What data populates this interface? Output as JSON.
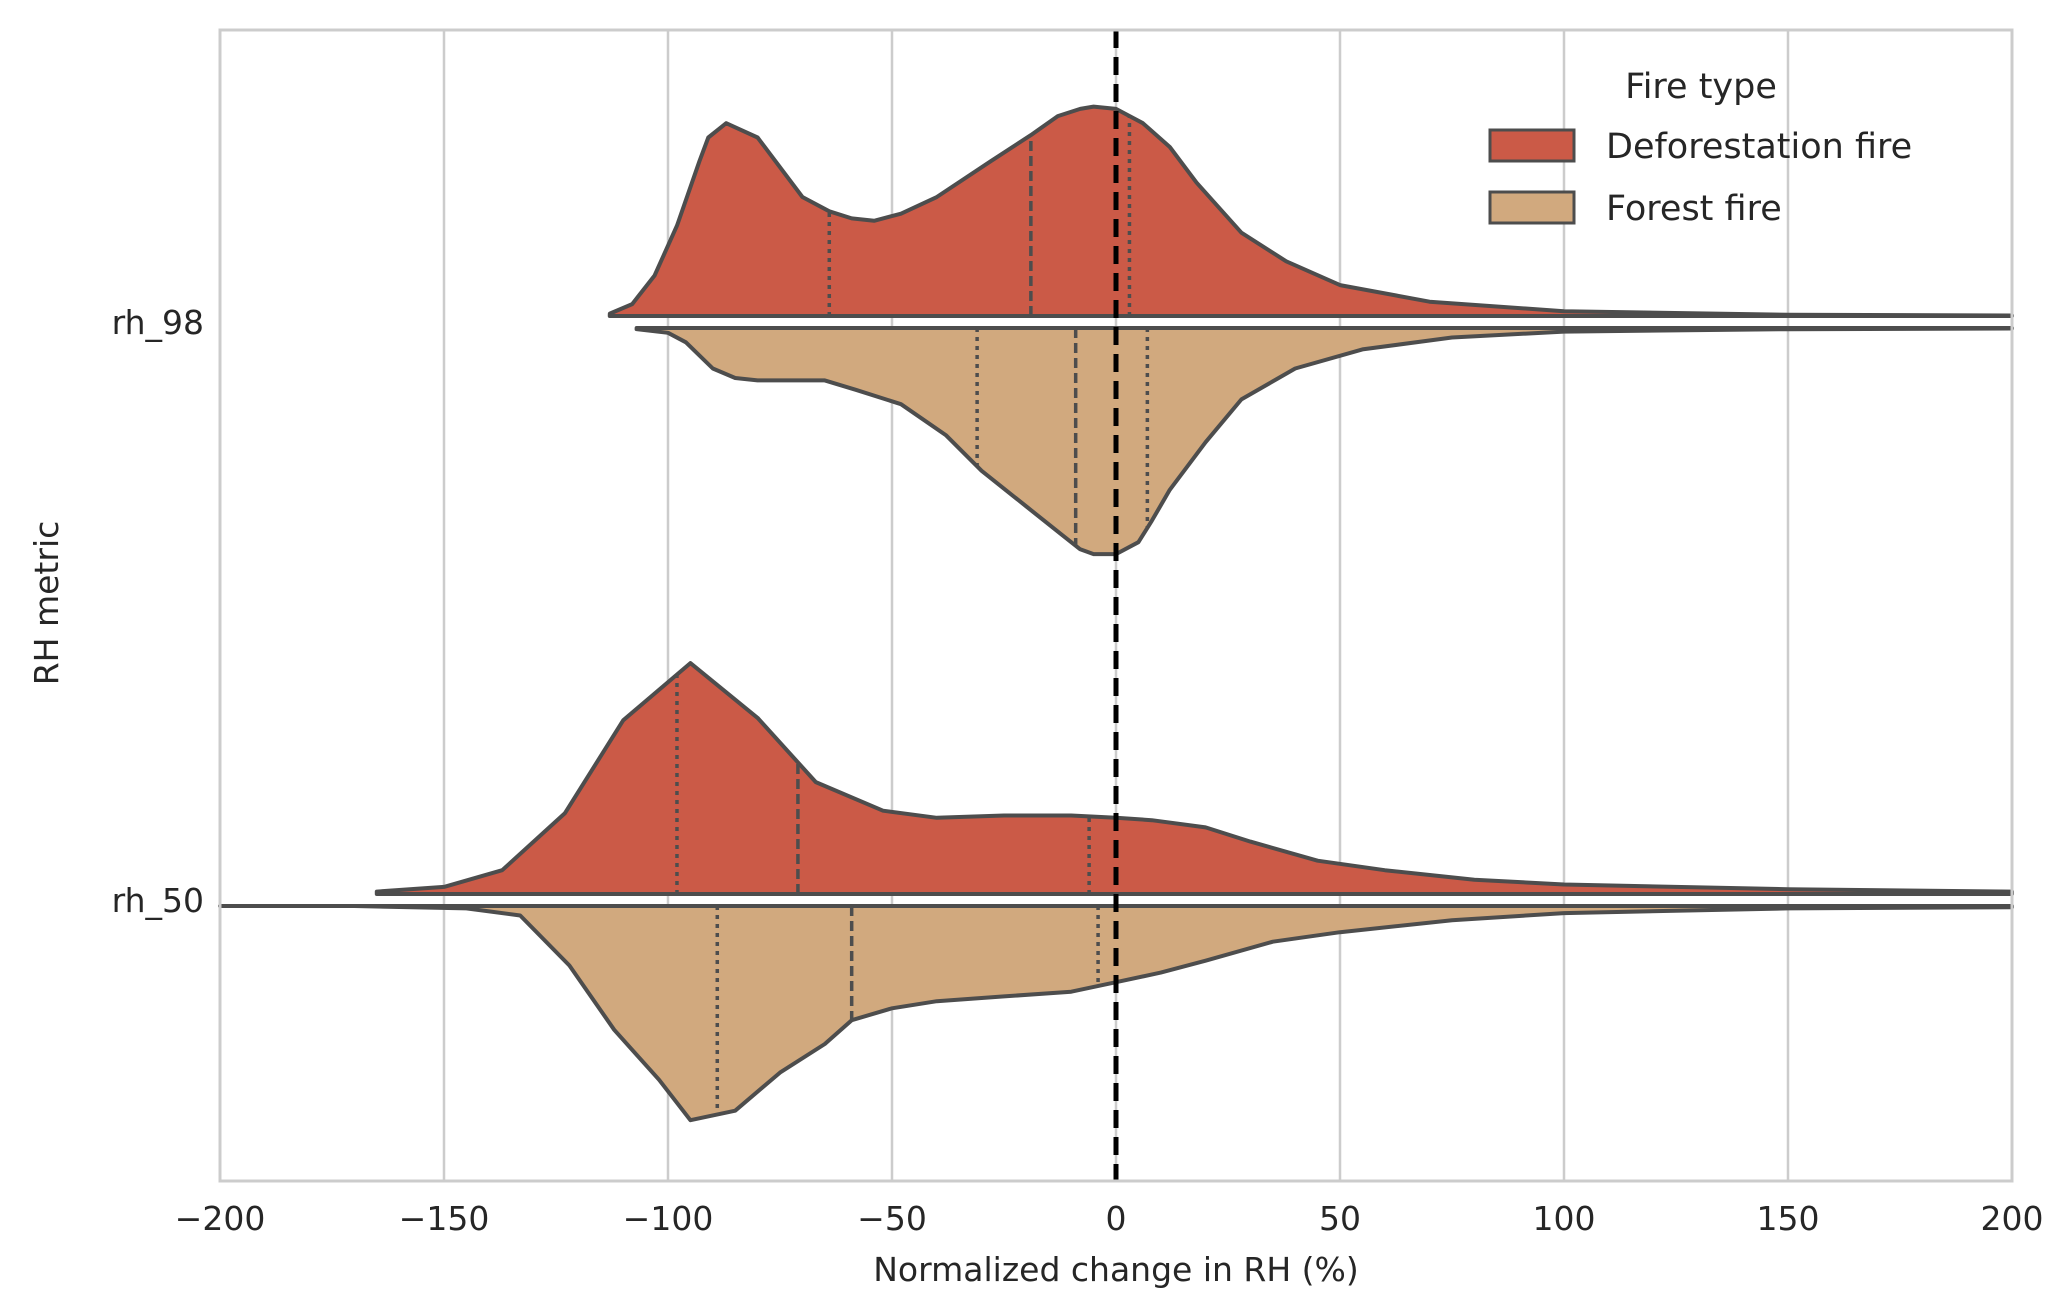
{
  "chart_data": {
    "type": "violin",
    "orientation": "horizontal",
    "split": true,
    "xlabel": "Normalized change in RH (%)",
    "ylabel": "RH metric",
    "xlim": [
      -200,
      200
    ],
    "xticks": [
      -200,
      -150,
      -100,
      -50,
      0,
      50,
      100,
      150,
      200
    ],
    "xtick_labels": [
      "−200",
      "−150",
      "−100",
      "−50",
      "0",
      "50",
      "100",
      "150",
      "200"
    ],
    "grid": "vertical",
    "reference_line": {
      "x": 0,
      "style": "dashed",
      "color": "#000000"
    },
    "legend": {
      "title": "Fire type",
      "placement": "top-right",
      "entries": [
        {
          "label": "Deforestation fire",
          "color": "#cb5a47"
        },
        {
          "label": "Forest fire",
          "color": "#d1a97e"
        }
      ]
    },
    "categories": [
      "rh_98",
      "rh_50"
    ],
    "series": [
      {
        "name": "Deforestation fire",
        "side": "upper",
        "color": "#cb5a47",
        "groups": [
          {
            "category": "rh_98",
            "density": [
              [
                -113,
                0.01
              ],
              [
                -108,
                0.05
              ],
              [
                -103,
                0.17
              ],
              [
                -98,
                0.38
              ],
              [
                -93,
                0.65
              ],
              [
                -91,
                0.75
              ],
              [
                -87,
                0.81
              ],
              [
                -80,
                0.75
              ],
              [
                -70,
                0.5
              ],
              [
                -64,
                0.44
              ],
              [
                -59,
                0.41
              ],
              [
                -54,
                0.4
              ],
              [
                -48,
                0.43
              ],
              [
                -40,
                0.5
              ],
              [
                -28,
                0.65
              ],
              [
                -19,
                0.76
              ],
              [
                -13,
                0.84
              ],
              [
                -8,
                0.87
              ],
              [
                -5,
                0.88
              ],
              [
                0,
                0.87
              ],
              [
                6,
                0.81
              ],
              [
                12,
                0.71
              ],
              [
                18,
                0.56
              ],
              [
                28,
                0.35
              ],
              [
                38,
                0.23
              ],
              [
                50,
                0.13
              ],
              [
                70,
                0.06
              ],
              [
                100,
                0.02
              ],
              [
                150,
                0.005
              ],
              [
                200,
                0.002
              ]
            ],
            "quartiles": [
              -64,
              -19,
              3
            ]
          },
          {
            "category": "rh_50",
            "density": [
              [
                -165,
                0.01
              ],
              [
                -150,
                0.03
              ],
              [
                -137,
                0.1
              ],
              [
                -123,
                0.34
              ],
              [
                -110,
                0.73
              ],
              [
                -95,
                0.97
              ],
              [
                -80,
                0.74
              ],
              [
                -67,
                0.47
              ],
              [
                -52,
                0.35
              ],
              [
                -40,
                0.32
              ],
              [
                -25,
                0.33
              ],
              [
                -10,
                0.33
              ],
              [
                0,
                0.32
              ],
              [
                8,
                0.31
              ],
              [
                20,
                0.28
              ],
              [
                30,
                0.22
              ],
              [
                45,
                0.14
              ],
              [
                60,
                0.1
              ],
              [
                80,
                0.06
              ],
              [
                100,
                0.04
              ],
              [
                150,
                0.02
              ],
              [
                200,
                0.01
              ]
            ],
            "quartiles": [
              -98,
              -71,
              -6
            ]
          }
        ]
      },
      {
        "name": "Forest fire",
        "side": "lower",
        "color": "#d1a97e",
        "groups": [
          {
            "category": "rh_98",
            "density": [
              [
                -107,
                0.005
              ],
              [
                -100,
                0.02
              ],
              [
                -96,
                0.06
              ],
              [
                -90,
                0.17
              ],
              [
                -85,
                0.21
              ],
              [
                -80,
                0.22
              ],
              [
                -65,
                0.22
              ],
              [
                -58,
                0.26
              ],
              [
                -48,
                0.32
              ],
              [
                -38,
                0.45
              ],
              [
                -30,
                0.6
              ],
              [
                -20,
                0.75
              ],
              [
                -12,
                0.87
              ],
              [
                -8,
                0.93
              ],
              [
                -5,
                0.95
              ],
              [
                0,
                0.95
              ],
              [
                5,
                0.9
              ],
              [
                8,
                0.81
              ],
              [
                12,
                0.68
              ],
              [
                20,
                0.48
              ],
              [
                28,
                0.3
              ],
              [
                40,
                0.17
              ],
              [
                55,
                0.09
              ],
              [
                75,
                0.04
              ],
              [
                100,
                0.015
              ],
              [
                150,
                0.005
              ],
              [
                200,
                0.002
              ]
            ],
            "quartiles": [
              -31,
              -9,
              7
            ]
          },
          {
            "category": "rh_50",
            "density": [
              [
                -200,
                0.0
              ],
              [
                -170,
                0.0
              ],
              [
                -145,
                0.01
              ],
              [
                -133,
                0.04
              ],
              [
                -122,
                0.25
              ],
              [
                -112,
                0.52
              ],
              [
                -102,
                0.73
              ],
              [
                -95,
                0.9
              ],
              [
                -85,
                0.86
              ],
              [
                -75,
                0.7
              ],
              [
                -65,
                0.58
              ],
              [
                -59,
                0.48
              ],
              [
                -50,
                0.43
              ],
              [
                -40,
                0.4
              ],
              [
                -25,
                0.38
              ],
              [
                -10,
                0.36
              ],
              [
                0,
                0.32
              ],
              [
                10,
                0.28
              ],
              [
                20,
                0.23
              ],
              [
                35,
                0.15
              ],
              [
                50,
                0.11
              ],
              [
                75,
                0.06
              ],
              [
                100,
                0.03
              ],
              [
                150,
                0.01
              ],
              [
                200,
                0.005
              ]
            ],
            "quartiles": [
              -89,
              -59,
              -4
            ]
          }
        ]
      }
    ]
  }
}
